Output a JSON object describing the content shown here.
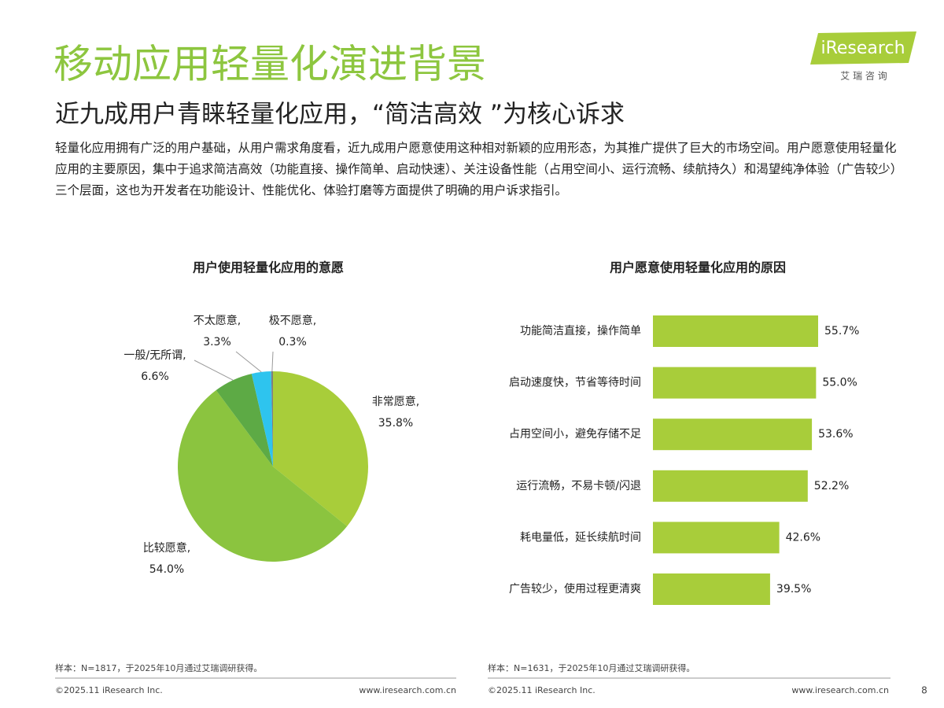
{
  "header": {
    "title": "移动应用轻量化演进背景",
    "subtitle": "近九成用户青睐轻量化应用，“简洁高效 ”为核心诉求",
    "body": "轻量化应用拥有广泛的用户基础，从用户需求角度看，近九成用户愿意使用这种相对新颖的应用形态，为其推广提供了巨大的市场空间。用户愿意使用轻量化应用的主要原因，集中于追求简洁高效（功能直接、操作简单、启动快速）、关注设备性能（占用空间小、运行流畅、续航持久）和渴望纯净体验（广告较少）三个层面，这也为开发者在功能设计、性能优化、体验打磨等方面提供了明确的用户诉求指引。",
    "logo": "iResearch",
    "logo_sub": "艾 瑞 咨 询"
  },
  "chart_data": [
    {
      "type": "pie",
      "title": "用户使用轻量化应用的意愿",
      "categories": [
        "非常愿意,",
        "比较愿意,",
        "一般/无所谓,",
        "不太愿意,",
        "极不愿意,"
      ],
      "values": [
        35.8,
        54.0,
        6.6,
        3.3,
        0.3
      ],
      "value_labels": [
        "35.8%",
        "54.0%",
        "6.6%",
        "3.3%",
        "0.3%"
      ],
      "colors": [
        "#a8cd3a",
        "#8bc43f",
        "#5daa45",
        "#2ec4ee",
        "#7f7f7f"
      ]
    },
    {
      "type": "bar",
      "orientation": "horizontal",
      "title": "用户愿意使用轻量化应用的原因",
      "categories": [
        "功能简洁直接，操作简单",
        "启动速度快，节省等待时间",
        "占用空间小，避免存储不足",
        "运行流畅，不易卡顿/闪退",
        "耗电量低，延长续航时间",
        "广告较少，使用过程更清爽"
      ],
      "values": [
        55.7,
        55.0,
        53.6,
        52.2,
        42.6,
        39.5
      ],
      "value_labels": [
        "55.7%",
        "55.0%",
        "53.6%",
        "52.2%",
        "42.6%",
        "39.5%"
      ],
      "color": "#a8cd3a"
    }
  ],
  "footer": {
    "notes": [
      "样本：N=1817，于2025年10月通过艾瑞调研获得。",
      "样本：N=1631，于2025年10月通过艾瑞调研获得。"
    ],
    "copyright": [
      "©2025.11 iResearch Inc.",
      "©2025.11 iResearch Inc."
    ],
    "url": [
      "www.iresearch.com.cn",
      "www.iresearch.com.cn"
    ],
    "page": "8"
  }
}
